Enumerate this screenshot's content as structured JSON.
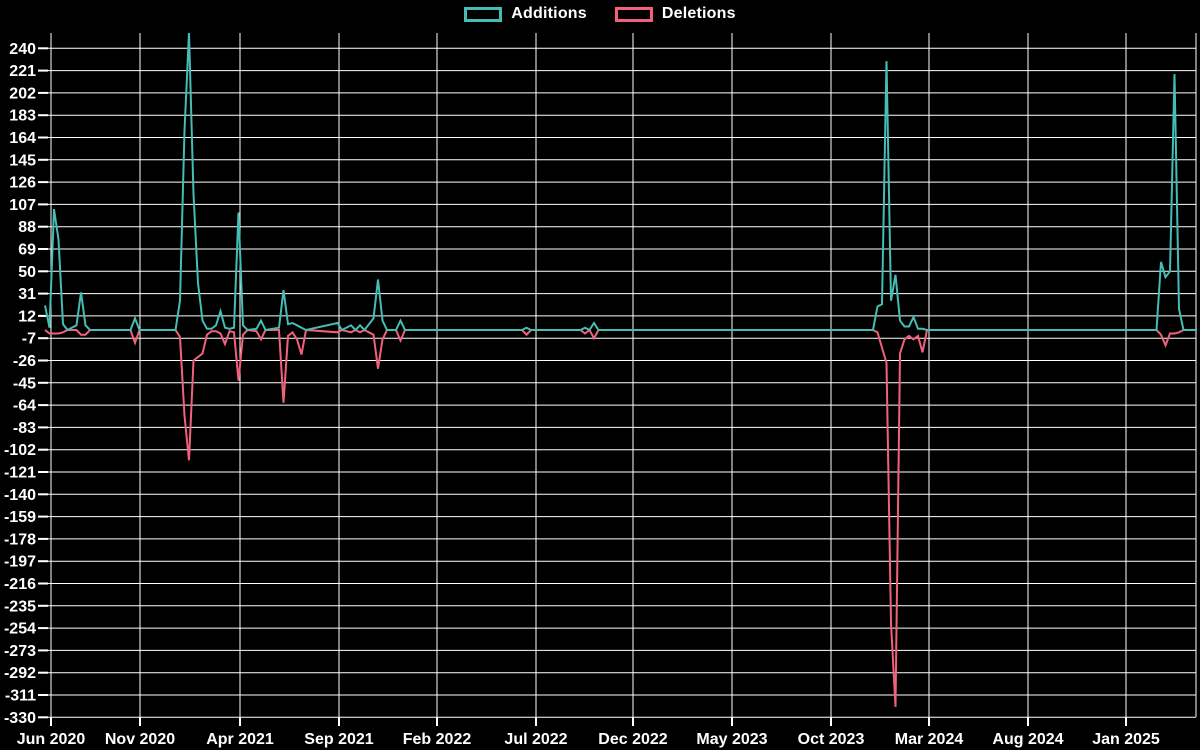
{
  "legend": {
    "items": [
      {
        "label": "Additions",
        "color": "#45bdb5"
      },
      {
        "label": "Deletions",
        "color": "#f2617c"
      }
    ]
  },
  "colors": {
    "background": "#000000",
    "grid": "#ffffff",
    "text": "#ffffff",
    "additions": "#45bdb5",
    "deletions": "#f2617c"
  },
  "chart_data": {
    "type": "line",
    "title": "",
    "xlabel": "",
    "ylabel": "",
    "legend_position": "top-center",
    "grid": true,
    "x_tick_labels": [
      "Jun 2020",
      "Nov 2020",
      "Apr 2021",
      "Sep 2021",
      "Feb 2022",
      "Jul 2022",
      "Dec 2022",
      "May 2023",
      "Oct 2023",
      "Mar 2024",
      "Aug 2024",
      "Jan 2025"
    ],
    "y_ticks": [
      240,
      221,
      202,
      183,
      164,
      145,
      126,
      107,
      88,
      69,
      50,
      31,
      12,
      -7,
      -26,
      -45,
      -64,
      -83,
      -102,
      -121,
      -140,
      -159,
      -178,
      -197,
      -216,
      -235,
      -254,
      -273,
      -292,
      -311,
      -330
    ],
    "ylim": [
      -330,
      253
    ],
    "x_unit": "weeks since series start (late May 2020), weekly data",
    "baseline": 0,
    "series": [
      {
        "name": "Additions",
        "color": "#45bdb5",
        "points": [
          [
            0,
            21
          ],
          [
            1,
            2
          ],
          [
            2,
            103
          ],
          [
            3,
            77
          ],
          [
            4,
            5
          ],
          [
            5,
            0
          ],
          [
            7,
            4
          ],
          [
            8,
            32
          ],
          [
            9,
            4
          ],
          [
            10,
            0
          ],
          [
            19,
            0
          ],
          [
            20,
            10
          ],
          [
            21,
            0
          ],
          [
            29,
            0
          ],
          [
            30,
            25
          ],
          [
            31,
            170
          ],
          [
            32,
            253
          ],
          [
            33,
            116
          ],
          [
            34,
            40
          ],
          [
            35,
            8
          ],
          [
            36,
            1
          ],
          [
            37,
            1
          ],
          [
            38,
            4
          ],
          [
            39,
            16
          ],
          [
            40,
            2
          ],
          [
            41,
            1
          ],
          [
            42,
            2
          ],
          [
            43,
            100
          ],
          [
            44,
            4
          ],
          [
            45,
            0
          ],
          [
            47,
            1
          ],
          [
            48,
            8
          ],
          [
            49,
            0
          ],
          [
            52,
            2
          ],
          [
            53,
            34
          ],
          [
            54,
            5
          ],
          [
            55,
            6
          ],
          [
            56,
            4
          ],
          [
            57,
            2
          ],
          [
            58,
            0
          ],
          [
            65,
            6
          ],
          [
            66,
            0
          ],
          [
            68,
            4
          ],
          [
            69,
            0
          ],
          [
            70,
            4
          ],
          [
            71,
            0
          ],
          [
            73,
            10
          ],
          [
            74,
            43
          ],
          [
            75,
            8
          ],
          [
            76,
            0
          ],
          [
            78,
            0
          ],
          [
            79,
            8
          ],
          [
            80,
            0
          ],
          [
            106,
            0
          ],
          [
            107,
            2
          ],
          [
            108,
            0
          ],
          [
            119,
            0
          ],
          [
            120,
            2
          ],
          [
            121,
            0
          ],
          [
            122,
            6
          ],
          [
            123,
            0
          ],
          [
            184,
            0
          ],
          [
            185,
            20
          ],
          [
            186,
            22
          ],
          [
            187,
            229
          ],
          [
            188,
            25
          ],
          [
            189,
            47
          ],
          [
            190,
            8
          ],
          [
            191,
            3
          ],
          [
            192,
            3
          ],
          [
            193,
            11
          ],
          [
            194,
            1
          ],
          [
            195,
            1
          ],
          [
            196,
            0
          ],
          [
            247,
            0
          ],
          [
            248,
            58
          ],
          [
            249,
            45
          ],
          [
            250,
            50
          ],
          [
            251,
            218
          ],
          [
            252,
            18
          ],
          [
            253,
            0
          ],
          [
            256,
            0
          ]
        ]
      },
      {
        "name": "Deletions",
        "color": "#f2617c",
        "points": [
          [
            0,
            0
          ],
          [
            1,
            -3
          ],
          [
            2,
            -3
          ],
          [
            3,
            -3
          ],
          [
            4,
            -2
          ],
          [
            5,
            0
          ],
          [
            7,
            0
          ],
          [
            8,
            -4
          ],
          [
            9,
            -4
          ],
          [
            10,
            0
          ],
          [
            19,
            0
          ],
          [
            20,
            -11
          ],
          [
            21,
            0
          ],
          [
            29,
            0
          ],
          [
            30,
            -6
          ],
          [
            31,
            -73
          ],
          [
            32,
            -111
          ],
          [
            33,
            -26
          ],
          [
            34,
            -23
          ],
          [
            35,
            -20
          ],
          [
            36,
            -4
          ],
          [
            37,
            -1
          ],
          [
            38,
            -1
          ],
          [
            39,
            -3
          ],
          [
            40,
            -12
          ],
          [
            41,
            -1
          ],
          [
            42,
            -2
          ],
          [
            43,
            -43
          ],
          [
            44,
            -4
          ],
          [
            45,
            0
          ],
          [
            47,
            -1
          ],
          [
            48,
            -8
          ],
          [
            49,
            0
          ],
          [
            52,
            0
          ],
          [
            53,
            -62
          ],
          [
            54,
            -5
          ],
          [
            55,
            -2
          ],
          [
            56,
            -8
          ],
          [
            57,
            -21
          ],
          [
            58,
            0
          ],
          [
            65,
            -2
          ],
          [
            66,
            0
          ],
          [
            68,
            -2
          ],
          [
            69,
            0
          ],
          [
            70,
            -2
          ],
          [
            71,
            0
          ],
          [
            73,
            -4
          ],
          [
            74,
            -33
          ],
          [
            75,
            -8
          ],
          [
            76,
            0
          ],
          [
            78,
            0
          ],
          [
            79,
            -9
          ],
          [
            80,
            0
          ],
          [
            106,
            0
          ],
          [
            107,
            -4
          ],
          [
            108,
            0
          ],
          [
            119,
            0
          ],
          [
            120,
            -3
          ],
          [
            121,
            0
          ],
          [
            122,
            -7
          ],
          [
            123,
            0
          ],
          [
            184,
            0
          ],
          [
            185,
            -2
          ],
          [
            186,
            -15
          ],
          [
            187,
            -28
          ],
          [
            188,
            -250
          ],
          [
            189,
            -321
          ],
          [
            190,
            -20
          ],
          [
            191,
            -8
          ],
          [
            192,
            -5
          ],
          [
            193,
            -8
          ],
          [
            194,
            -5
          ],
          [
            195,
            -19
          ],
          [
            196,
            0
          ],
          [
            247,
            0
          ],
          [
            248,
            -4
          ],
          [
            249,
            -13
          ],
          [
            250,
            -3
          ],
          [
            251,
            -3
          ],
          [
            252,
            -2
          ],
          [
            253,
            0
          ],
          [
            256,
            0
          ]
        ]
      }
    ]
  }
}
